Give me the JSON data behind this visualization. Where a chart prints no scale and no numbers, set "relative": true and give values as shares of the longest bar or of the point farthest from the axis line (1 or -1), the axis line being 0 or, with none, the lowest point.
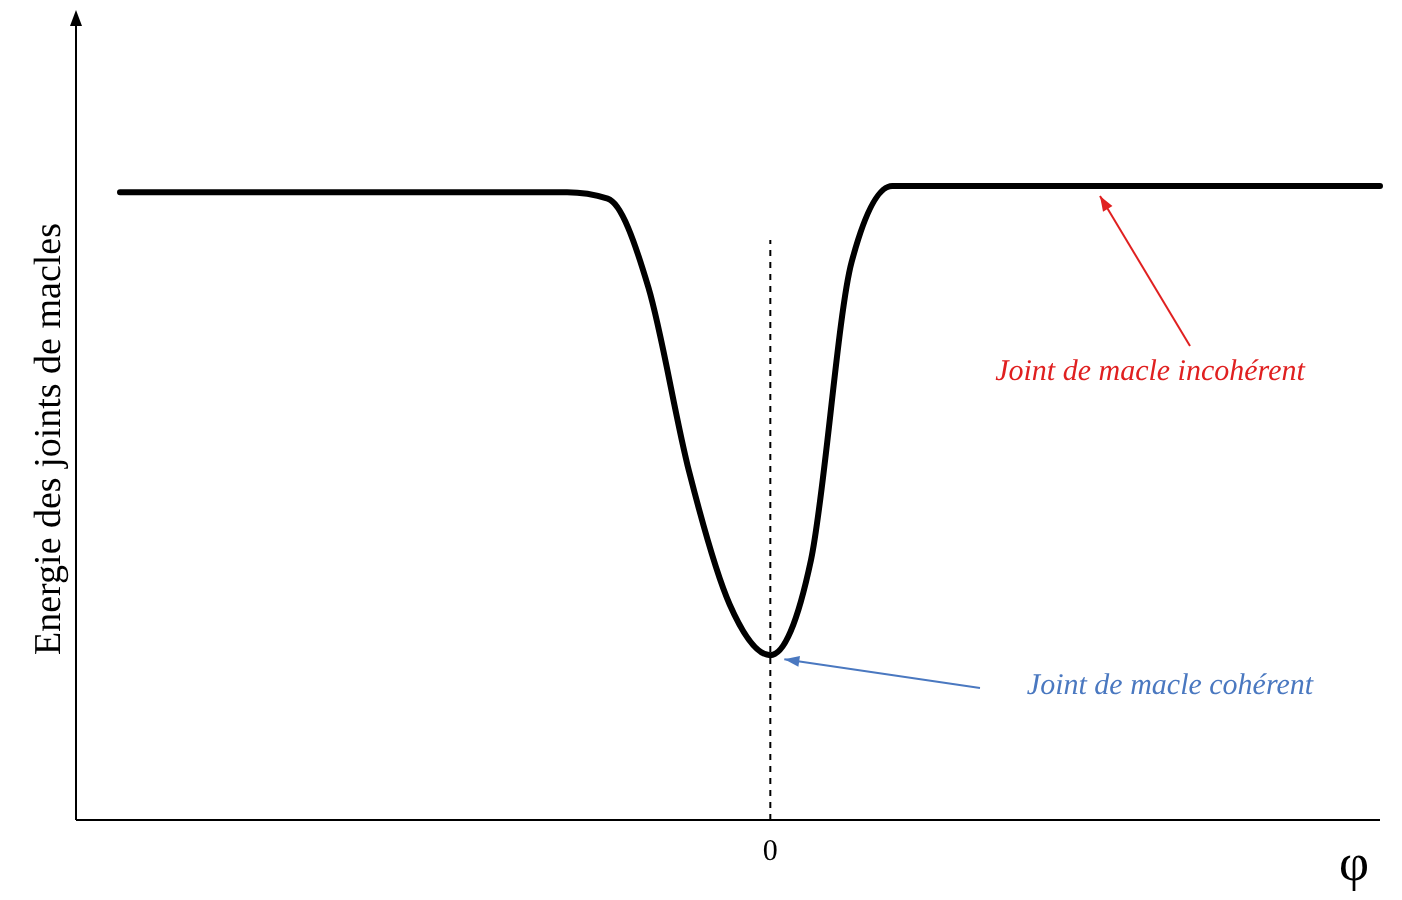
{
  "chart_data": {
    "type": "line",
    "relative": true,
    "xlabel": "φ",
    "ylabel": "Energie des joints de macles",
    "categories": [
      null,
      null,
      null,
      null,
      null,
      null,
      null,
      null,
      null,
      null,
      null,
      null,
      null,
      null,
      null,
      null,
      null,
      null,
      null,
      null,
      null,
      null,
      null,
      null,
      null,
      null,
      null,
      null,
      null,
      null,
      null,
      null
    ],
    "series": [
      {
        "color": "#000000",
        "values": [
          0.99,
          0.99,
          0.99,
          0.99,
          0.99,
          0.99,
          0.99,
          0.99,
          0.99,
          0.99,
          0.99,
          0.99,
          0.98,
          0.84,
          0.55,
          0.34,
          0.26,
          0.41,
          0.88,
          1.0,
          1.0,
          1.0,
          1.0,
          1.0,
          1.0,
          1.0,
          1.0,
          1.0,
          1.0,
          1.0,
          1.0,
          1.0
        ]
      }
    ],
    "line_style": "solid",
    "ref_lines": [
      {
        "axis": "x",
        "label": "0",
        "color": "#000000",
        "line_style": "dashed"
      }
    ],
    "annotations": [
      "Joint de macle incohérent",
      "Joint de macle cohérent"
    ]
  }
}
